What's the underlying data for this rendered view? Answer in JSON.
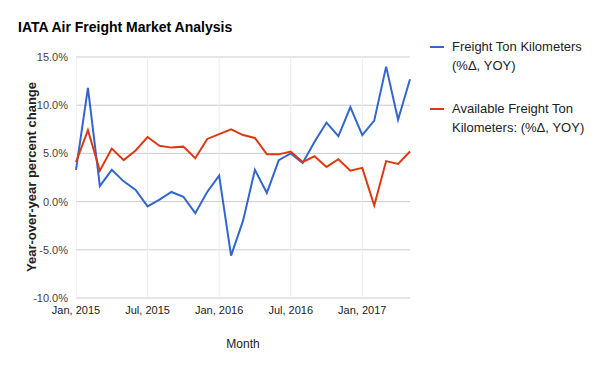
{
  "chart_data": {
    "type": "line",
    "title": "IATA Air Freight Market Analysis",
    "x_label": "Month",
    "y_label": "Year-over-year percent change",
    "categories": [
      "Jan, 2015",
      null,
      null,
      null,
      null,
      null,
      "Jul, 2015",
      null,
      null,
      null,
      null,
      null,
      "Jan, 2016",
      null,
      null,
      null,
      null,
      null,
      "Jul, 2016",
      null,
      null,
      null,
      null,
      null,
      "Jan, 2017",
      null,
      null,
      null,
      null
    ],
    "series": [
      {
        "name": "Freight Ton Kilometers (%Δ, YOY)",
        "color": "#3366cc",
        "values": [
          3.3,
          11.8,
          1.6,
          3.3,
          2.1,
          1.2,
          -0.5,
          0.2,
          1.0,
          0.5,
          -1.2,
          1.0,
          2.7,
          -5.6,
          -2.0,
          3.3,
          0.9,
          4.3,
          5.0,
          4.0,
          6.2,
          8.2,
          6.8,
          9.8,
          6.9,
          8.4,
          14.0,
          8.5,
          12.7
        ]
      },
      {
        "name": "Available Freight Ton Kilometers: (%Δ, YOY)",
        "color": "#dc3912",
        "values": [
          4.1,
          7.4,
          3.2,
          5.5,
          4.3,
          5.3,
          6.7,
          5.8,
          5.6,
          5.7,
          4.5,
          6.5,
          7.0,
          7.5,
          6.9,
          6.6,
          4.9,
          4.9,
          5.2,
          4.1,
          4.7,
          3.6,
          4.4,
          3.2,
          3.5,
          -0.4,
          4.2,
          3.9,
          5.2
        ]
      }
    ],
    "ylim": [
      -10,
      15
    ],
    "yticks": [
      {
        "value": -10,
        "label": "-10.0%"
      },
      {
        "value": -5,
        "label": "-5.0%"
      },
      {
        "value": 0,
        "label": "0.0%"
      },
      {
        "value": 5,
        "label": "5.0%"
      },
      {
        "value": 10,
        "label": "10.0%"
      },
      {
        "value": 15,
        "label": "15.0%"
      }
    ],
    "grid": true,
    "legend": "right",
    "marker": "none"
  }
}
